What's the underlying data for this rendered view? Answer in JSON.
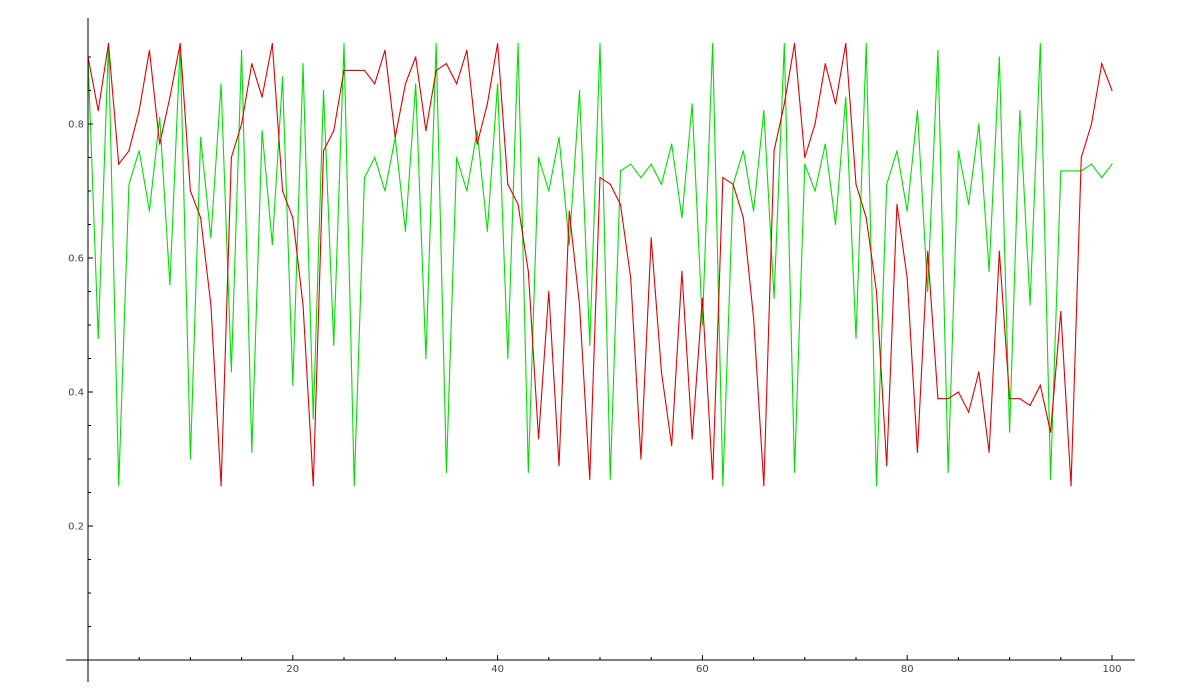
{
  "chart_data": {
    "type": "line",
    "title": "",
    "xlabel": "",
    "ylabel": "",
    "xlim": [
      0,
      100
    ],
    "ylim": [
      0,
      0.95
    ],
    "x_ticks": [
      20,
      40,
      60,
      80,
      100
    ],
    "y_ticks": [
      0.2,
      0.4,
      0.6,
      0.8
    ],
    "x_tick_labels": [
      "20",
      "40",
      "60",
      "80",
      "100"
    ],
    "y_tick_labels": [
      "0.2",
      "0.4",
      "0.6",
      "0.8"
    ],
    "grid": false,
    "legend": "none",
    "x": [
      0,
      1,
      2,
      3,
      4,
      5,
      6,
      7,
      8,
      9,
      10,
      11,
      12,
      13,
      14,
      15,
      16,
      17,
      18,
      19,
      20,
      21,
      22,
      23,
      24,
      25,
      26,
      27,
      28,
      29,
      30,
      31,
      32,
      33,
      34,
      35,
      36,
      37,
      38,
      39,
      40,
      41,
      42,
      43,
      44,
      45,
      46,
      47,
      48,
      49,
      50,
      51,
      52,
      53,
      54,
      55,
      56,
      57,
      58,
      59,
      60,
      61,
      62,
      63,
      64,
      65,
      66,
      67,
      68,
      69,
      70,
      71,
      72,
      73,
      74,
      75,
      76,
      77,
      78,
      79,
      80,
      81,
      82,
      83,
      84,
      85,
      86,
      87,
      88,
      89,
      90,
      91,
      92,
      93,
      94,
      95,
      96,
      97,
      98,
      99,
      100
    ],
    "series": [
      {
        "color": "#00e000",
        "values": [
          0.9,
          0.48,
          0.92,
          0.26,
          0.71,
          0.76,
          0.67,
          0.81,
          0.56,
          0.92,
          0.3,
          0.78,
          0.63,
          0.86,
          0.43,
          0.91,
          0.31,
          0.79,
          0.62,
          0.87,
          0.41,
          0.89,
          0.36,
          0.85,
          0.47,
          0.92,
          0.26,
          0.72,
          0.75,
          0.7,
          0.78,
          0.64,
          0.86,
          0.45,
          0.92,
          0.28,
          0.75,
          0.7,
          0.79,
          0.64,
          0.86,
          0.45,
          0.92,
          0.28,
          0.75,
          0.7,
          0.78,
          0.62,
          0.85,
          0.47,
          0.92,
          0.27,
          0.73,
          0.74,
          0.72,
          0.74,
          0.71,
          0.77,
          0.66,
          0.83,
          0.5,
          0.92,
          0.26,
          0.71,
          0.76,
          0.67,
          0.82,
          0.54,
          0.92,
          0.28,
          0.74,
          0.7,
          0.77,
          0.65,
          0.84,
          0.48,
          0.92,
          0.26,
          0.71,
          0.76,
          0.67,
          0.82,
          0.55,
          0.91,
          0.28,
          0.76,
          0.68,
          0.8,
          0.58,
          0.9,
          0.34,
          0.82,
          0.53,
          0.92,
          0.27,
          0.73,
          0.73,
          0.73,
          0.74,
          0.72,
          0.74
        ]
      },
      {
        "color": "#e00000",
        "values": [
          0.9,
          0.82,
          0.92,
          0.74,
          0.76,
          0.82,
          0.91,
          0.77,
          0.84,
          0.92,
          0.7,
          0.66,
          0.53,
          0.26,
          0.75,
          0.8,
          0.89,
          0.84,
          0.92,
          0.7,
          0.66,
          0.53,
          0.26,
          0.76,
          0.79,
          0.88,
          0.88,
          0.88,
          0.86,
          0.91,
          0.78,
          0.86,
          0.9,
          0.79,
          0.88,
          0.89,
          0.86,
          0.91,
          0.77,
          0.83,
          0.92,
          0.71,
          0.68,
          0.58,
          0.33,
          0.55,
          0.29,
          0.67,
          0.53,
          0.27,
          0.72,
          0.71,
          0.68,
          0.57,
          0.3,
          0.63,
          0.43,
          0.32,
          0.58,
          0.33,
          0.54,
          0.27,
          0.72,
          0.71,
          0.66,
          0.51,
          0.26,
          0.76,
          0.83,
          0.92,
          0.75,
          0.8,
          0.89,
          0.83,
          0.92,
          0.71,
          0.66,
          0.55,
          0.29,
          0.68,
          0.57,
          0.31,
          0.61,
          0.39,
          0.39,
          0.4,
          0.37,
          0.43,
          0.31,
          0.61,
          0.39,
          0.39,
          0.38,
          0.41,
          0.34,
          0.52,
          0.26,
          0.75,
          0.8,
          0.89,
          0.85
        ]
      }
    ]
  }
}
